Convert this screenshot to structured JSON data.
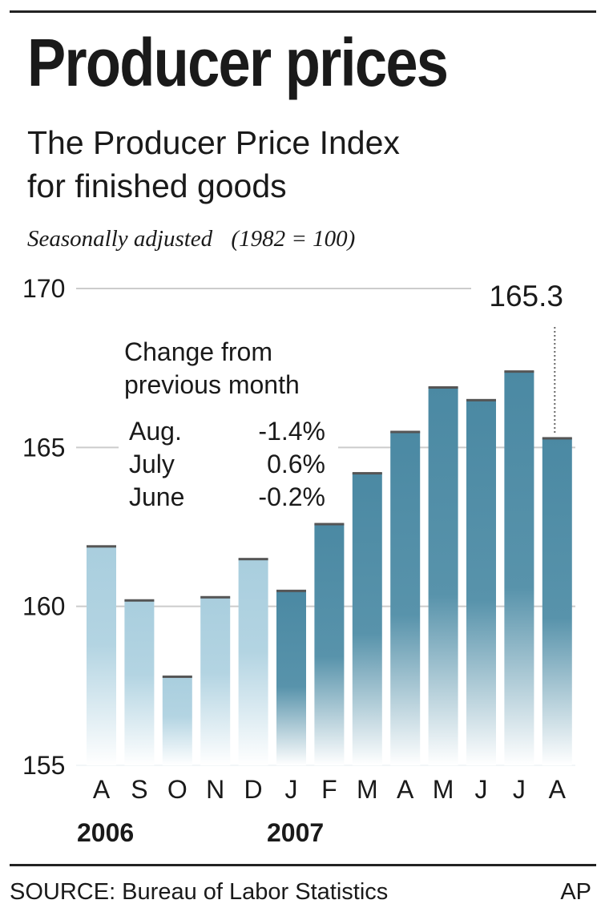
{
  "title": "Producer prices",
  "subtitle_lines": [
    "The Producer Price Index",
    "for finished goods"
  ],
  "note": "Seasonally adjusted",
  "note_base": "(1982 = 100)",
  "source": "SOURCE: Bureau of Labor Statistics",
  "credit": "AP",
  "chart_data": {
    "type": "bar",
    "categories": [
      "A",
      "S",
      "O",
      "N",
      "D",
      "J",
      "F",
      "M",
      "A",
      "M",
      "J",
      "J",
      "A"
    ],
    "values": [
      161.9,
      160.2,
      157.8,
      160.3,
      161.5,
      160.5,
      162.6,
      164.2,
      165.5,
      166.9,
      166.5,
      167.4,
      165.3
    ],
    "year_groups": [
      {
        "label": "2006",
        "start_index": 0
      },
      {
        "label": "2007",
        "start_index": 5
      }
    ],
    "ylim": [
      155,
      170
    ],
    "yticks": [
      155,
      160,
      165,
      170
    ],
    "grid": true,
    "highlight": {
      "index": 12,
      "label": "165.3"
    },
    "colors": {
      "2006": "#a9cede",
      "2007": "#4b89a3",
      "cap": "#555555",
      "grid": "#cccccc"
    },
    "annotation": {
      "heading_lines": [
        "Change from",
        "previous month"
      ],
      "rows": [
        {
          "month": "Aug.",
          "change": "-1.4%"
        },
        {
          "month": "July",
          "change": "0.6%"
        },
        {
          "month": "June",
          "change": "-0.2%"
        }
      ]
    }
  }
}
